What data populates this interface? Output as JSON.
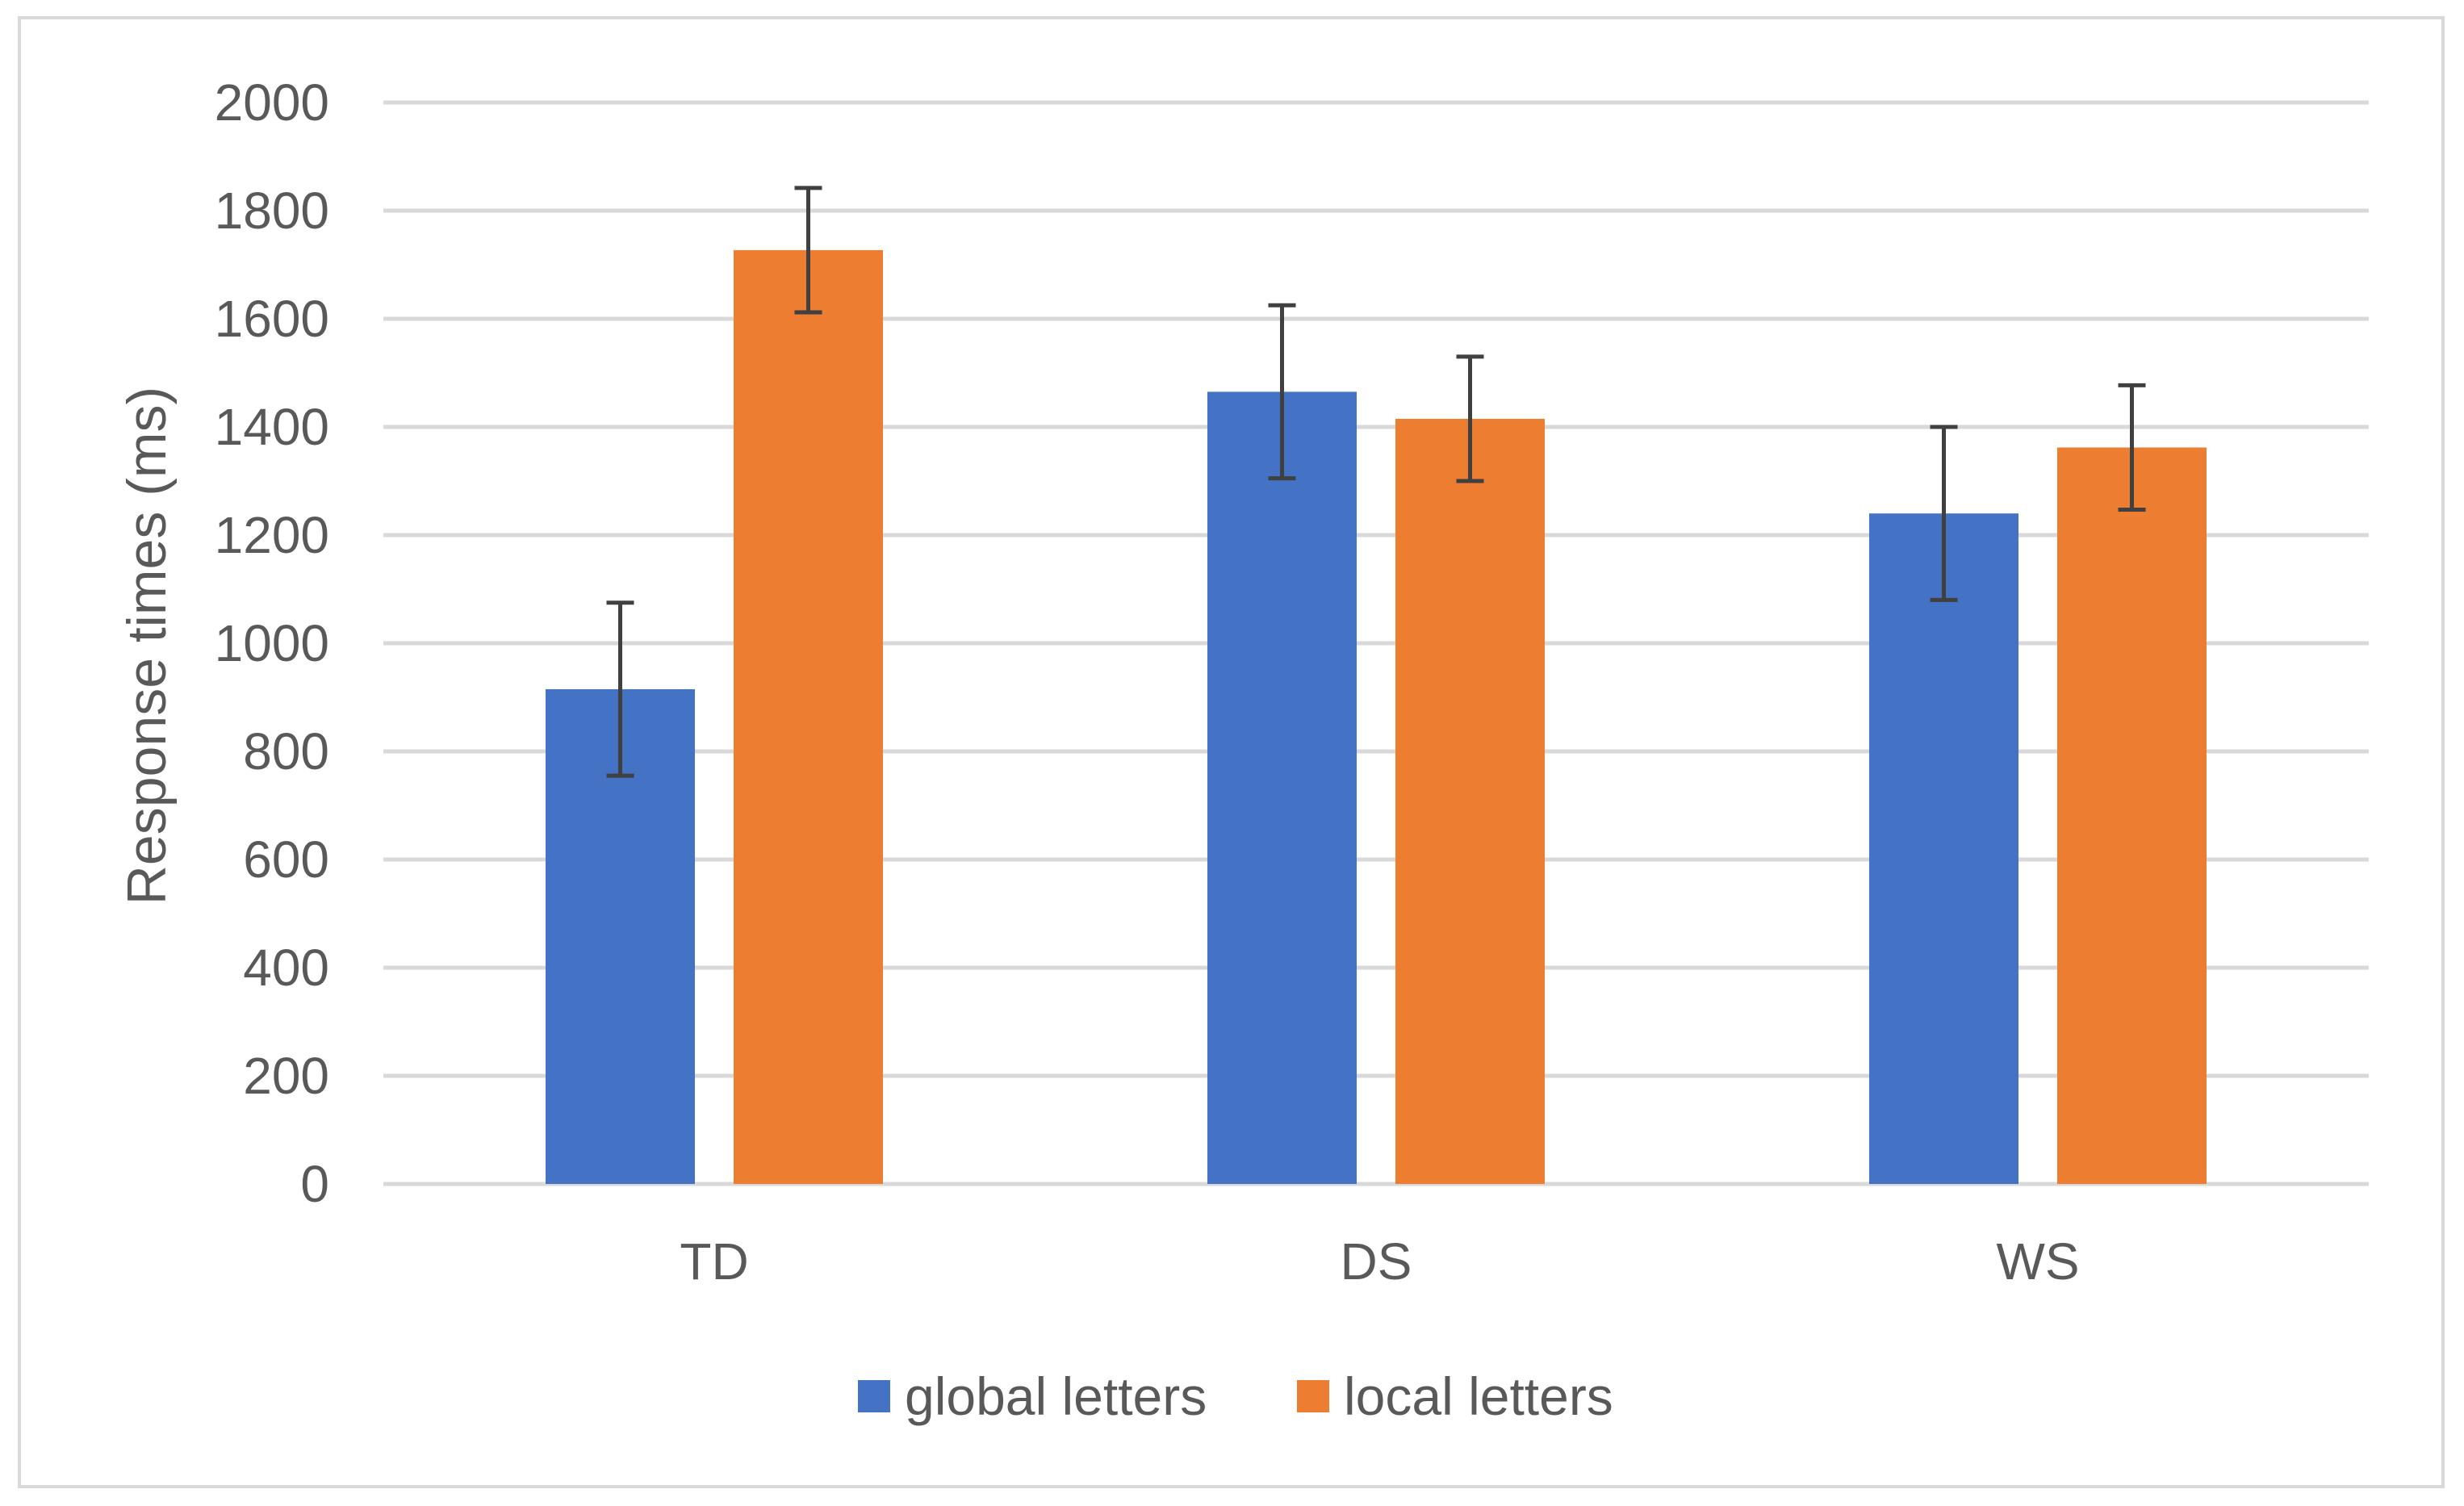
{
  "chart_data": {
    "type": "bar",
    "title": "",
    "xlabel": "",
    "ylabel": "Response times (ms)",
    "ylim": [
      0,
      2000
    ],
    "yticks": [
      0,
      200,
      400,
      600,
      800,
      1000,
      1200,
      1400,
      1600,
      1800,
      2000
    ],
    "categories": [
      "TD",
      "DS",
      "WS"
    ],
    "series": [
      {
        "name": "global letters",
        "color": "#4472C4",
        "values": [
          915,
          1465,
          1240
        ],
        "error": [
          160,
          160,
          160
        ]
      },
      {
        "name": "local letters",
        "color": "#ED7D31",
        "values": [
          1727,
          1415,
          1362
        ],
        "error": [
          115,
          115,
          115
        ]
      }
    ],
    "grid": true,
    "legend": "bottom",
    "colors": {
      "gridline": "#D9D9D9",
      "errorbar": "#404040",
      "text": "#595959",
      "frame": "#D9D9D9"
    }
  }
}
